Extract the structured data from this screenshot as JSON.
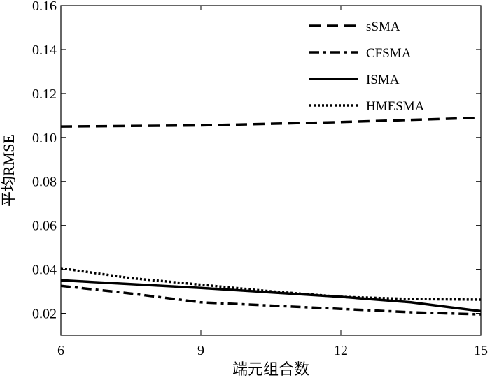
{
  "chart_data": {
    "type": "line",
    "xlabel": "端元组合数",
    "ylabel": "平均RMSE",
    "xlim": [
      6,
      15
    ],
    "ylim": [
      0.01,
      0.16
    ],
    "xticks": [
      6,
      9,
      12,
      15
    ],
    "yticks": [
      "0.02",
      "0.04",
      "0.06",
      "0.08",
      "0.10",
      "0.12",
      "0.14",
      "0.16"
    ],
    "grid": false,
    "legend_position": "top-right",
    "series": [
      {
        "name": "sSMA",
        "style": "dashed",
        "points": [
          [
            6,
            0.105
          ],
          [
            9,
            0.1055
          ],
          [
            12,
            0.107
          ],
          [
            15,
            0.109
          ]
        ]
      },
      {
        "name": "CFSMA",
        "style": "dashdot",
        "points": [
          [
            6,
            0.0325
          ],
          [
            7.5,
            0.029
          ],
          [
            9,
            0.025
          ],
          [
            10.5,
            0.0235
          ],
          [
            12,
            0.022
          ],
          [
            13.5,
            0.0205
          ],
          [
            15,
            0.0195
          ]
        ]
      },
      {
        "name": "ISMA",
        "style": "solid",
        "points": [
          [
            6,
            0.035
          ],
          [
            9,
            0.0315
          ],
          [
            12,
            0.0275
          ],
          [
            13.5,
            0.025
          ],
          [
            15,
            0.021
          ]
        ]
      },
      {
        "name": "HMESMA",
        "style": "dotted",
        "points": [
          [
            6,
            0.0405
          ],
          [
            7.5,
            0.036
          ],
          [
            9,
            0.033
          ],
          [
            10.5,
            0.03
          ],
          [
            12,
            0.0275
          ],
          [
            13.5,
            0.0265
          ],
          [
            15,
            0.0262
          ]
        ]
      }
    ]
  }
}
